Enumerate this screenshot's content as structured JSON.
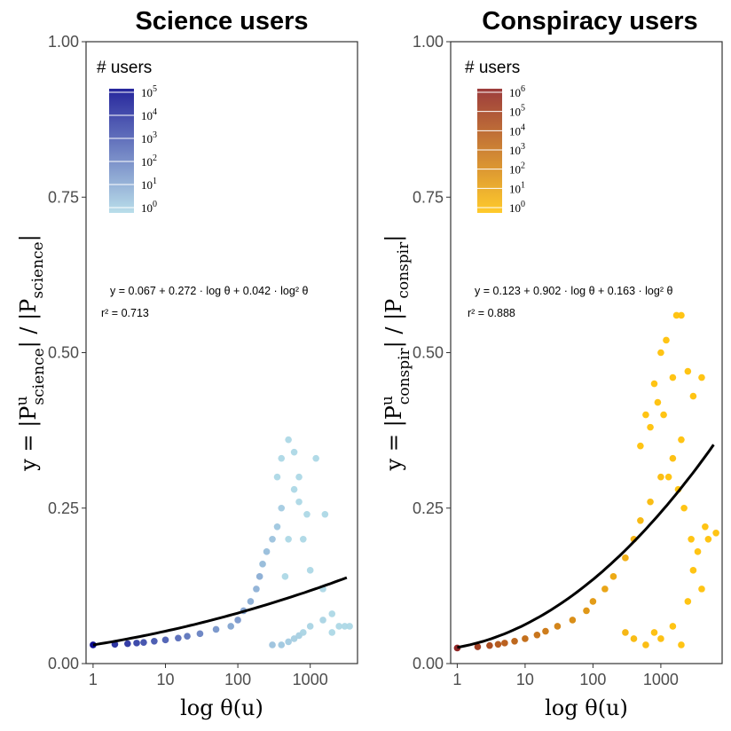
{
  "chart_data": [
    {
      "type": "scatter",
      "title": "Science users",
      "xlabel": "log θ(u)",
      "ylabel": "y = |P^u_science| / |P_science|",
      "ylabel_parts": {
        "lhs": "y = |P",
        "sup1": "u",
        "sub1": "science",
        "mid": "| / |P",
        "sub2": "science",
        "end": "|"
      },
      "x_scale": "log10",
      "x_ticks": [
        "1",
        "10",
        "100",
        "1000"
      ],
      "y_ticks": [
        "0.00",
        "0.25",
        "0.50",
        "0.75",
        "1.00"
      ],
      "ylim": [
        0,
        1
      ],
      "xlim": [
        0.8,
        4500
      ],
      "fit": {
        "a": 0.067,
        "b": 0.272,
        "c": 0.042,
        "x_range": [
          1,
          3200
        ]
      },
      "equation": "y = 0.067 + 0.272 · log θ + 0.042 · log² θ",
      "r2": "r² = 0.713",
      "legend": {
        "title": "# users",
        "ticks": [
          "10^0",
          "10^1",
          "10^2",
          "10^3",
          "10^4",
          "10^5"
        ],
        "color_low": "#add8e6",
        "color_high": "#00008b"
      },
      "points": [
        [
          1,
          0.03,
          5
        ],
        [
          2,
          0.031,
          4
        ],
        [
          3,
          0.032,
          3.8
        ],
        [
          4,
          0.033,
          3.5
        ],
        [
          5,
          0.034,
          3.2
        ],
        [
          7,
          0.036,
          3
        ],
        [
          10,
          0.038,
          2.8
        ],
        [
          15,
          0.041,
          2.5
        ],
        [
          20,
          0.044,
          2.3
        ],
        [
          30,
          0.048,
          2
        ],
        [
          50,
          0.055,
          1.6
        ],
        [
          80,
          0.06,
          1.2
        ],
        [
          100,
          0.07,
          1.5
        ],
        [
          120,
          0.085,
          1.3
        ],
        [
          150,
          0.1,
          1.0
        ],
        [
          180,
          0.12,
          0.9
        ],
        [
          200,
          0.14,
          1.0
        ],
        [
          220,
          0.16,
          0.7
        ],
        [
          250,
          0.18,
          0.6
        ],
        [
          300,
          0.2,
          0.5
        ],
        [
          350,
          0.22,
          0.4
        ],
        [
          400,
          0.25,
          0.3
        ],
        [
          300,
          0.03,
          0.5
        ],
        [
          400,
          0.03,
          0.4
        ],
        [
          500,
          0.035,
          0.3
        ],
        [
          600,
          0.04,
          0.2
        ],
        [
          700,
          0.045,
          0.2
        ],
        [
          800,
          0.05,
          0.1
        ],
        [
          1000,
          0.06,
          0.1
        ],
        [
          1500,
          0.07,
          0.1
        ],
        [
          2000,
          0.08,
          0
        ],
        [
          3000,
          0.06,
          0
        ],
        [
          350,
          0.3,
          0
        ],
        [
          400,
          0.33,
          0
        ],
        [
          500,
          0.36,
          0
        ],
        [
          600,
          0.34,
          0
        ],
        [
          700,
          0.3,
          0
        ],
        [
          1200,
          0.33,
          0
        ],
        [
          900,
          0.24,
          0
        ],
        [
          1600,
          0.24,
          0
        ],
        [
          500,
          0.2,
          0
        ],
        [
          800,
          0.2,
          0
        ],
        [
          1000,
          0.15,
          0
        ],
        [
          1500,
          0.12,
          0
        ],
        [
          600,
          0.28,
          0
        ],
        [
          700,
          0.26,
          0
        ],
        [
          450,
          0.14,
          0
        ],
        [
          2500,
          0.06,
          0
        ],
        [
          3500,
          0.06,
          0
        ],
        [
          2000,
          0.05,
          0
        ]
      ]
    },
    {
      "type": "scatter",
      "title": "Conspiracy users",
      "xlabel": "log θ(u)",
      "ylabel": "y = |P^u_conspir| / |P_conspir|",
      "ylabel_parts": {
        "lhs": "y = |P",
        "sup1": "u",
        "sub1": "conspir",
        "mid": "| / |P",
        "sub2": "conspir",
        "end": "|"
      },
      "x_scale": "log10",
      "x_ticks": [
        "1",
        "10",
        "100",
        "1000"
      ],
      "y_ticks": [
        "0.00",
        "0.25",
        "0.50",
        "0.75",
        "1.00"
      ],
      "ylim": [
        0,
        1
      ],
      "xlim": [
        0.8,
        8000
      ],
      "fit": {
        "a": 0.123,
        "b": 0.902,
        "c": 0.163,
        "x_range": [
          1,
          6000
        ]
      },
      "equation": "y = 0.123 + 0.902 · log θ + 0.163 · log² θ",
      "r2": "r² = 0.888",
      "legend": {
        "title": "# users",
        "ticks": [
          "10^0",
          "10^1",
          "10^2",
          "10^3",
          "10^4",
          "10^5",
          "10^6"
        ],
        "color_low": "#ffc107",
        "color_high": "#8b1a1a"
      },
      "points": [
        [
          1,
          0.025,
          6
        ],
        [
          2,
          0.027,
          5
        ],
        [
          3,
          0.029,
          4.5
        ],
        [
          4,
          0.031,
          4
        ],
        [
          5,
          0.033,
          3.8
        ],
        [
          7,
          0.036,
          3.5
        ],
        [
          10,
          0.04,
          3.2
        ],
        [
          15,
          0.046,
          3
        ],
        [
          20,
          0.052,
          2.7
        ],
        [
          30,
          0.06,
          2.4
        ],
        [
          50,
          0.07,
          2
        ],
        [
          80,
          0.085,
          1.7
        ],
        [
          100,
          0.1,
          1.5
        ],
        [
          150,
          0.12,
          1.2
        ],
        [
          200,
          0.14,
          1.0
        ],
        [
          300,
          0.17,
          0.8
        ],
        [
          400,
          0.2,
          0.6
        ],
        [
          500,
          0.23,
          0.4
        ],
        [
          700,
          0.26,
          0.3
        ],
        [
          1000,
          0.3,
          0.2
        ],
        [
          1500,
          0.33,
          0.1
        ],
        [
          2000,
          0.36,
          0
        ],
        [
          300,
          0.05,
          0.5
        ],
        [
          400,
          0.04,
          0.3
        ],
        [
          600,
          0.03,
          0.2
        ],
        [
          800,
          0.05,
          0.1
        ],
        [
          1000,
          0.04,
          0.1
        ],
        [
          1500,
          0.06,
          0
        ],
        [
          2000,
          0.03,
          0
        ],
        [
          600,
          0.4,
          0
        ],
        [
          800,
          0.45,
          0
        ],
        [
          1000,
          0.5,
          0
        ],
        [
          1200,
          0.52,
          0
        ],
        [
          1700,
          0.56,
          0
        ],
        [
          2000,
          0.56,
          0
        ],
        [
          1500,
          0.46,
          0
        ],
        [
          700,
          0.38,
          0
        ],
        [
          900,
          0.42,
          0
        ],
        [
          2500,
          0.47,
          0
        ],
        [
          3000,
          0.43,
          0
        ],
        [
          4000,
          0.46,
          0
        ],
        [
          500,
          0.35,
          0
        ],
        [
          1100,
          0.4,
          0
        ],
        [
          1300,
          0.3,
          0
        ],
        [
          1800,
          0.28,
          0
        ],
        [
          2200,
          0.25,
          0
        ],
        [
          2800,
          0.2,
          0
        ],
        [
          3500,
          0.18,
          0
        ],
        [
          4500,
          0.22,
          0
        ],
        [
          5000,
          0.2,
          0
        ],
        [
          6500,
          0.21,
          0
        ],
        [
          3000,
          0.15,
          0
        ],
        [
          2500,
          0.1,
          0
        ],
        [
          4000,
          0.12,
          0
        ]
      ]
    }
  ]
}
